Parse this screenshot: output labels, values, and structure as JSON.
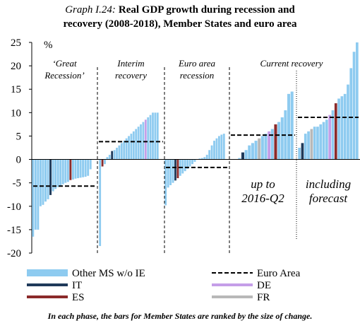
{
  "chart_data": {
    "type": "bar",
    "title_label": "Graph I.24:",
    "title": [
      "Real GDP growth during recession and",
      "recovery (2008-2018), Member States and euro area"
    ],
    "y_unit": "%",
    "ylim": [
      -20,
      25
    ],
    "yticks": [
      -20,
      -15,
      -10,
      -5,
      0,
      5,
      10,
      15,
      20,
      25
    ],
    "current_label": "Current recovery",
    "panels": [
      {
        "label": [
          "‘Great",
          "Recession’"
        ],
        "euro_area": -5.7,
        "values": [
          -16.5,
          -15,
          -15,
          -10,
          -9.7,
          -9,
          -8.5,
          -7.6,
          -6.8,
          -6.3,
          -5.9,
          -5.6,
          -5.3,
          -5,
          -4.8,
          -4.4,
          -4.3,
          -4.1,
          -4,
          -3.9,
          -3.8,
          -3.7,
          -3.5,
          -2.1
        ],
        "colors": [
          "#8ecbf0",
          "#8ecbf0",
          "#8ecbf0",
          "#8ecbf0",
          "#8ecbf0",
          "#8ecbf0",
          "#8ecbf0",
          "#1f3a5a",
          "#8ecbf0",
          "#8ecbf0",
          "#8ecbf0",
          "#8ecbf0",
          "#8ecbf0",
          "#8ecbf0",
          "#8ecbf0",
          "#8b2a2a",
          "#8ecbf0",
          "#8ecbf0",
          "#8ecbf0",
          "#8ecbf0",
          "#8ecbf0",
          "#8ecbf0",
          "#8ecbf0",
          "#8ecbf0"
        ]
      },
      {
        "label": [
          "Interim",
          "recovery"
        ],
        "euro_area": 3.8,
        "values": [
          -18.5,
          -1.5,
          -1,
          0.5,
          1,
          1.8,
          2,
          2.5,
          3,
          3.5,
          4,
          4.5,
          5,
          5.5,
          6,
          6.5,
          7,
          7.5,
          8,
          8.5,
          9,
          9.5,
          10,
          10,
          10
        ],
        "colors": [
          "#8ecbf0",
          "#8b2a2a",
          "#8ecbf0",
          "#8ecbf0",
          "#8ecbf0",
          "#1f3a5a",
          "#8ecbf0",
          "#8ecbf0",
          "#8ecbf0",
          "#8ecbf0",
          "#8ecbf0",
          "#8ecbf0",
          "#8ecbf0",
          "#8ecbf0",
          "#8ecbf0",
          "#8ecbf0",
          "#8ecbf0",
          "#8ecbf0",
          "#8ecbf0",
          "#c59ee8",
          "#8ecbf0",
          "#8ecbf0",
          "#8ecbf0",
          "#8ecbf0",
          "#8ecbf0"
        ]
      },
      {
        "label": [
          "Euro area",
          "recession"
        ],
        "euro_area": -1.7,
        "values": [
          -9.8,
          -6,
          -5.5,
          -5,
          -4.5,
          -4,
          -3.5,
          -3,
          -2.5,
          -2,
          -1.5,
          -1,
          -0.5,
          0,
          0.2,
          0.3,
          0.5,
          1,
          2,
          3,
          4,
          4.5,
          5,
          5.3,
          5.5
        ],
        "colors": [
          "#8ecbf0",
          "#8ecbf0",
          "#8ecbf0",
          "#8ecbf0",
          "#1f3a5a",
          "#8b2a2a",
          "#8ecbf0",
          "#8ecbf0",
          "#8ecbf0",
          "#8ecbf0",
          "#8ecbf0",
          "#8ecbf0",
          "#8ecbf0",
          "#8ecbf0",
          "#8ecbf0",
          "#8ecbf0",
          "#8ecbf0",
          "#8ecbf0",
          "#8ecbf0",
          "#8ecbf0",
          "#8ecbf0",
          "#8ecbf0",
          "#8ecbf0",
          "#8ecbf0",
          "#8ecbf0"
        ]
      },
      {
        "sublabel": [
          "up to",
          "2016-Q2"
        ],
        "euro_area": 5.2,
        "values": [
          0.3,
          1.5,
          2,
          3,
          3.5,
          4,
          4.5,
          5,
          5.5,
          6,
          6.5,
          7.5,
          8,
          9,
          10.5,
          14,
          14.5
        ],
        "colors": [
          "#8ecbf0",
          "#1f3a5a",
          "#8ecbf0",
          "#8ecbf0",
          "#8ecbf0",
          "#8ecbf0",
          "#b8b8b8",
          "#8ecbf0",
          "#8ecbf0",
          "#c59ee8",
          "#8ecbf0",
          "#8b2a2a",
          "#8ecbf0",
          "#8ecbf0",
          "#8ecbf0",
          "#8ecbf0",
          "#8ecbf0"
        ]
      },
      {
        "sublabel": [
          "including",
          "forecast"
        ],
        "euro_area": 9,
        "values": [
          2.5,
          3.5,
          5.5,
          6,
          6.5,
          7,
          7,
          7.5,
          8,
          8.5,
          9.5,
          10.5,
          12,
          13,
          13.5,
          14,
          16,
          19.5,
          23,
          25
        ],
        "colors": [
          "#8ecbf0",
          "#1f3a5a",
          "#8ecbf0",
          "#8ecbf0",
          "#b8b8b8",
          "#8ecbf0",
          "#8ecbf0",
          "#8ecbf0",
          "#8ecbf0",
          "#8ecbf0",
          "#c59ee8",
          "#8ecbf0",
          "#8b2a2a",
          "#8ecbf0",
          "#8ecbf0",
          "#8ecbf0",
          "#8ecbf0",
          "#8ecbf0",
          "#8ecbf0",
          "#8ecbf0"
        ]
      }
    ],
    "legend": [
      {
        "name": "Other MS w/o IE",
        "color": "#8ecbf0",
        "style": "bar"
      },
      {
        "name": "Euro Area",
        "color": "#000000",
        "style": "dashed"
      },
      {
        "name": "IT",
        "color": "#1f3a5a",
        "style": "line"
      },
      {
        "name": "DE",
        "color": "#c59ee8",
        "style": "line"
      },
      {
        "name": "ES",
        "color": "#8b2a2a",
        "style": "line"
      },
      {
        "name": "FR",
        "color": "#b8b8b8",
        "style": "line"
      }
    ],
    "footnote": "In each phase, the bars for Member States are ranked by the size of change."
  }
}
